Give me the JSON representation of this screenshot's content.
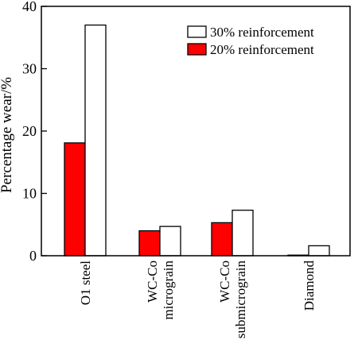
{
  "chart_data": {
    "type": "bar",
    "categories": [
      [
        "O1 steel"
      ],
      [
        "WC-Co",
        "micrograin"
      ],
      [
        "WC-Co",
        "submicrograin"
      ],
      [
        "Diamond"
      ]
    ],
    "series": [
      {
        "name": "20% reinforcement",
        "color": "#ff0000",
        "values": [
          18.1,
          4.0,
          5.3,
          0.1
        ]
      },
      {
        "name": "30% reinforcement",
        "color": "#ffffff",
        "values": [
          37.0,
          4.7,
          7.3,
          1.6
        ]
      }
    ],
    "title": "",
    "xlabel": "",
    "ylabel": "Percentage wear/%",
    "ylim": [
      0,
      40
    ],
    "yticks": [
      0,
      10,
      20,
      30,
      40
    ],
    "grid": false,
    "legend_position": "top-right",
    "legend_order": [
      1,
      0
    ]
  }
}
